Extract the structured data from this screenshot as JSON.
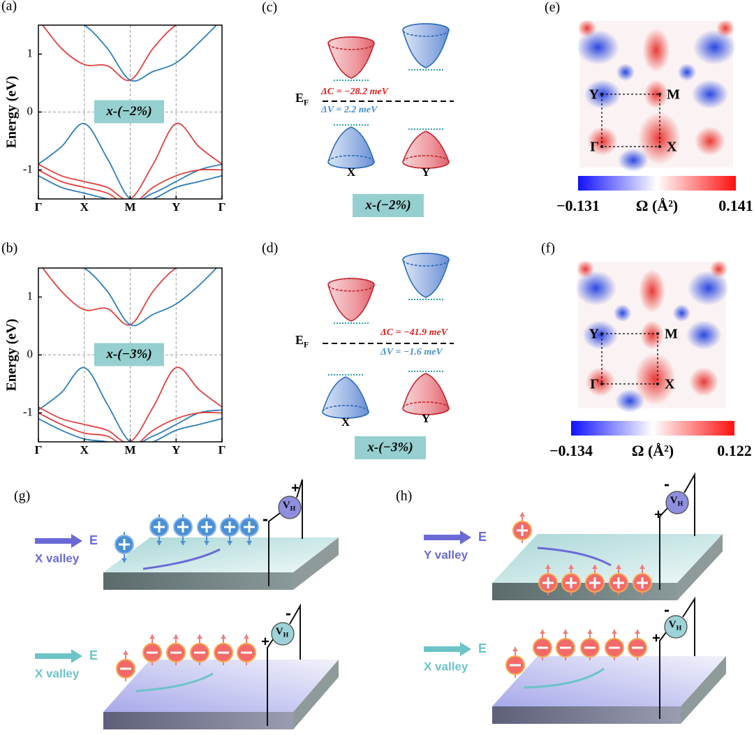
{
  "chart_data": [
    {
      "type": "line",
      "panel_label": "(a)",
      "ylabel": "Energy (eV)",
      "annotation": "x-(−2%)",
      "categories": [
        "Γ",
        null,
        "X",
        null,
        "M",
        null,
        "Y",
        null,
        "Γ"
      ],
      "series": [
        {
          "color": "#2e7fb8",
          "values": [
            -0.9,
            -0.6,
            -0.2,
            -0.8,
            -1.5,
            -1.4,
            -1.2,
            -1.0,
            -0.9
          ]
        },
        {
          "color": "#e0413f",
          "values": [
            -0.9,
            -1.1,
            -1.2,
            -1.3,
            -1.5,
            -0.9,
            -0.2,
            -0.6,
            -0.9
          ]
        },
        {
          "color": "#e0413f",
          "values": [
            1.6,
            1.1,
            0.82,
            0.8,
            0.55,
            1.1,
            1.5,
            1.6,
            1.6
          ]
        },
        {
          "color": "#2e7fb8",
          "values": [
            1.6,
            1.6,
            1.5,
            1.1,
            0.55,
            0.7,
            0.85,
            1.2,
            1.6
          ]
        },
        {
          "color": "#e0413f",
          "values": [
            -1.0,
            -1.2,
            -1.3,
            -1.4,
            -1.6,
            -1.3,
            -1.1,
            -1.0,
            -1.0
          ]
        },
        {
          "color": "#2e7fb8",
          "values": [
            -1.1,
            -1.3,
            -1.4,
            -1.5,
            -1.6,
            -1.5,
            -1.3,
            -1.2,
            -1.1
          ]
        }
      ],
      "ylim": [
        -1.5,
        1.5
      ],
      "yticks": [
        -1,
        0,
        1
      ],
      "grid": true
    },
    {
      "type": "line",
      "panel_label": "(b)",
      "ylabel": "Energy (eV)",
      "annotation": "x-(−3%)",
      "categories": [
        "Γ",
        null,
        "X",
        null,
        "M",
        null,
        "Y",
        null,
        "Γ"
      ],
      "series": [
        {
          "color": "#2e7fb8",
          "values": [
            -0.95,
            -0.65,
            -0.22,
            -0.85,
            -1.5,
            -1.4,
            -1.2,
            -1.0,
            -0.95
          ]
        },
        {
          "color": "#e0413f",
          "values": [
            -0.9,
            -1.1,
            -1.2,
            -1.3,
            -1.5,
            -0.9,
            -0.22,
            -0.6,
            -0.9
          ]
        },
        {
          "color": "#e0413f",
          "values": [
            1.6,
            1.1,
            0.78,
            0.8,
            0.52,
            1.1,
            1.5,
            1.6,
            1.6
          ]
        },
        {
          "color": "#2e7fb8",
          "values": [
            1.6,
            1.6,
            1.5,
            1.1,
            0.52,
            0.7,
            0.88,
            1.2,
            1.6
          ]
        },
        {
          "color": "#e0413f",
          "values": [
            -1.0,
            -1.2,
            -1.35,
            -1.4,
            -1.6,
            -1.3,
            -1.1,
            -1.0,
            -1.0
          ]
        },
        {
          "color": "#2e7fb8",
          "values": [
            -1.1,
            -1.3,
            -1.45,
            -1.5,
            -1.6,
            -1.5,
            -1.3,
            -1.2,
            -1.1
          ]
        }
      ],
      "ylim": [
        -1.5,
        1.5
      ],
      "yticks": [
        -1,
        0,
        1
      ],
      "grid": true
    }
  ],
  "panels": {
    "c": {
      "label": "(c)",
      "fermi": "E",
      "fermi_sub": "F",
      "delta_c": "ΔC = −28.2 meV",
      "delta_v": "ΔV =   2.2 meV",
      "valley_x": "X",
      "valley_y": "Y",
      "strain": "x-(−2%)"
    },
    "d": {
      "label": "(d)",
      "fermi": "E",
      "fermi_sub": "F",
      "delta_c": "ΔC = −41.9 meV",
      "delta_v": "ΔV = −1.6 meV",
      "valley_x": "X",
      "valley_y": "Y",
      "strain": "x-(−3%)"
    },
    "e": {
      "label": "(e)",
      "points": [
        "Y",
        "M",
        "Γ",
        "X"
      ],
      "cbar_min": "−0.131",
      "cbar_title": "Ω (Å²)",
      "cbar_max": "0.141"
    },
    "f": {
      "label": "(f)",
      "points": [
        "Y",
        "M",
        "Γ",
        "X"
      ],
      "cbar_min": "−0.134",
      "cbar_title": "Ω (Å²)",
      "cbar_max": "0.122"
    },
    "g": {
      "label": "(g)",
      "top": {
        "field": "E",
        "valley": "X valley",
        "vh": "V",
        "vh_sub": "H",
        "plus": "+",
        "minus": "-"
      },
      "bottom": {
        "field": "E",
        "valley": "X valley",
        "vh": "V",
        "vh_sub": "H",
        "plus": "+",
        "minus": "-"
      }
    },
    "h": {
      "label": "(h)",
      "top": {
        "field": "E",
        "valley": "Y valley",
        "vh": "V",
        "vh_sub": "H",
        "plus": "+",
        "minus": "-"
      },
      "bottom": {
        "field": "E",
        "valley": "X valley",
        "vh": "V",
        "vh_sub": "H",
        "plus": "+",
        "minus": "-"
      }
    }
  }
}
